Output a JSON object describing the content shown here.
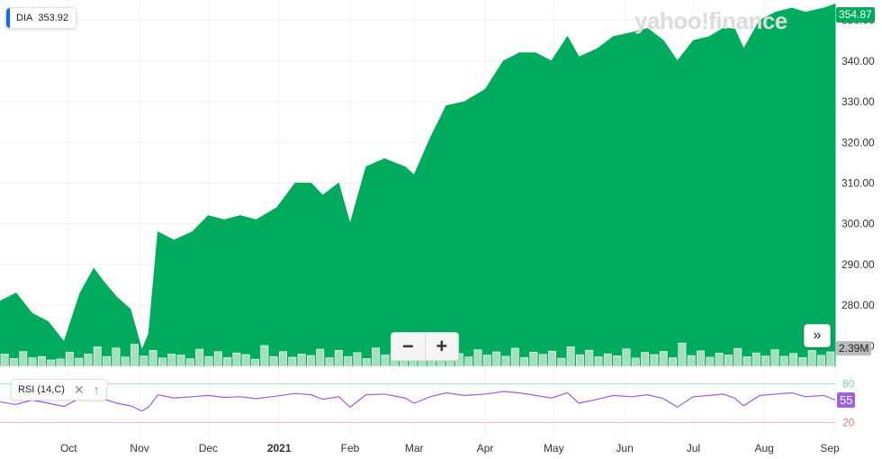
{
  "watermark": "yahoo!finance",
  "ticker": {
    "symbol": "DIA",
    "last": "353.92"
  },
  "price_tag": "354.87",
  "volume_tag": "2.39M",
  "rsi_badge": {
    "label": "RSI (14,C)",
    "close_icon": "close-icon",
    "up_icon": "arrow-up-icon"
  },
  "rsi_tag": "55",
  "zoom": {
    "minus": "−",
    "plus": "+"
  },
  "expand": "»",
  "colors": {
    "area": "#00ab5e",
    "volume": "#a5dfbf",
    "rsi": "#9b5de5",
    "ob_line": "#2fbf71",
    "os_line": "#ee5a5a"
  },
  "chart_data": [
    {
      "type": "area",
      "series": [
        {
          "x": [
            "2020-09-01",
            "2020-09-08",
            "2020-09-15",
            "2020-09-22",
            "2020-09-29",
            "2020-10-06",
            "2020-10-12",
            "2020-10-16",
            "2020-10-22",
            "2020-10-28",
            "2020-11-02",
            "2020-11-05",
            "2020-11-09",
            "2020-11-16",
            "2020-11-24",
            "2020-12-01",
            "2020-12-08",
            "2020-12-15",
            "2020-12-22",
            "2020-12-31",
            "2021-01-08",
            "2021-01-15",
            "2021-01-20",
            "2021-01-27",
            "2021-02-01",
            "2021-02-08",
            "2021-02-16",
            "2021-02-25",
            "2021-03-01",
            "2021-03-08",
            "2021-03-15",
            "2021-03-23",
            "2021-04-01",
            "2021-04-09",
            "2021-04-16",
            "2021-04-23",
            "2021-04-30",
            "2021-05-07",
            "2021-05-12",
            "2021-05-20",
            "2021-05-27",
            "2021-06-04",
            "2021-06-11",
            "2021-06-18",
            "2021-06-24",
            "2021-07-01",
            "2021-07-08",
            "2021-07-14",
            "2021-07-19",
            "2021-07-23",
            "2021-07-30",
            "2021-08-06",
            "2021-08-13",
            "2021-08-19",
            "2021-08-27",
            "2021-09-01"
          ],
          "y": [
            281,
            283,
            278,
            276,
            271,
            283,
            289,
            286,
            282,
            279,
            269,
            273,
            298,
            296,
            298,
            302,
            301,
            302,
            301,
            304,
            310,
            310,
            307,
            310,
            300,
            314,
            316,
            314,
            312,
            321,
            329,
            330,
            333,
            340,
            342,
            342,
            340,
            346,
            341,
            343,
            346,
            347,
            348,
            345,
            340,
            345,
            346,
            348,
            348,
            343,
            350,
            352,
            353,
            352,
            353,
            354
          ]
        }
      ],
      "ylabel": "",
      "ylim": [
        265,
        355
      ],
      "yticks": [
        "350.00",
        "340.00",
        "330.00",
        "320.00",
        "310.00",
        "300.00",
        "290.00",
        "280.00",
        "270.00"
      ],
      "xticks": [
        "Oct",
        "Nov",
        "Dec",
        "2021",
        "Feb",
        "Mar",
        "Apr",
        "May",
        "Jun",
        "Jul",
        "Aug",
        "Sep"
      ],
      "grid": true
    },
    {
      "type": "bar",
      "name": "volume",
      "values": [
        5,
        3.2,
        6,
        3.5,
        4,
        2.6,
        3,
        5.8,
        3.3,
        5,
        8,
        4,
        7.5,
        3.8,
        9,
        4.2,
        6.5,
        3.4,
        5,
        4.6,
        3.1,
        7,
        4,
        6,
        3.6,
        5.5,
        4.8,
        2.9,
        8.5,
        4,
        6,
        3.7,
        5,
        4.4,
        7,
        3.5,
        6.5,
        4,
        5.6,
        3.2,
        7.5,
        4.6,
        6,
        3.9,
        5.3,
        8,
        4.2,
        6.4,
        4.5,
        5.2,
        3.8,
        6.8,
        4.6,
        5.9,
        4.1,
        7.4,
        3.6,
        5.8,
        4.9,
        6.2,
        3.3,
        8,
        4.7,
        6.6,
        3.9,
        5.1,
        4.3,
        7.1,
        3.4,
        5.7,
        4.8,
        6.1,
        3.5,
        9.5,
        4.4,
        6.3,
        3.7,
        5.4,
        4.6,
        7.3,
        3.9,
        5.5,
        4.2,
        6.8,
        4.1,
        5.3,
        3.6,
        6.5,
        4.5,
        5.9
      ],
      "ylim": [
        0,
        30
      ]
    },
    {
      "type": "line",
      "name": "RSI (14,C)",
      "x": [
        "2020-09-01",
        "2020-09-08",
        "2020-09-15",
        "2020-09-22",
        "2020-09-29",
        "2020-10-06",
        "2020-10-12",
        "2020-10-16",
        "2020-10-22",
        "2020-10-28",
        "2020-11-02",
        "2020-11-05",
        "2020-11-09",
        "2020-11-16",
        "2020-11-24",
        "2020-12-01",
        "2020-12-08",
        "2020-12-15",
        "2020-12-22",
        "2020-12-31",
        "2021-01-08",
        "2021-01-15",
        "2021-01-20",
        "2021-01-27",
        "2021-02-01",
        "2021-02-08",
        "2021-02-16",
        "2021-02-25",
        "2021-03-01",
        "2021-03-08",
        "2021-03-15",
        "2021-03-23",
        "2021-04-01",
        "2021-04-09",
        "2021-04-16",
        "2021-04-23",
        "2021-04-30",
        "2021-05-07",
        "2021-05-12",
        "2021-05-20",
        "2021-05-27",
        "2021-06-04",
        "2021-06-11",
        "2021-06-18",
        "2021-06-24",
        "2021-07-01",
        "2021-07-08",
        "2021-07-14",
        "2021-07-19",
        "2021-07-23",
        "2021-07-30",
        "2021-08-06",
        "2021-08-13",
        "2021-08-19",
        "2021-08-27",
        "2021-09-01"
      ],
      "y": [
        52,
        48,
        55,
        50,
        45,
        58,
        62,
        57,
        50,
        46,
        38,
        44,
        63,
        58,
        60,
        62,
        59,
        60,
        57,
        61,
        65,
        63,
        56,
        60,
        44,
        63,
        64,
        58,
        50,
        60,
        66,
        62,
        64,
        68,
        66,
        62,
        58,
        66,
        50,
        56,
        62,
        60,
        63,
        57,
        44,
        60,
        62,
        64,
        58,
        46,
        62,
        64,
        66,
        60,
        62,
        55
      ],
      "ylim": [
        0,
        100
      ],
      "levels": [
        80,
        20
      ],
      "level_labels": [
        "80",
        "20"
      ]
    }
  ]
}
